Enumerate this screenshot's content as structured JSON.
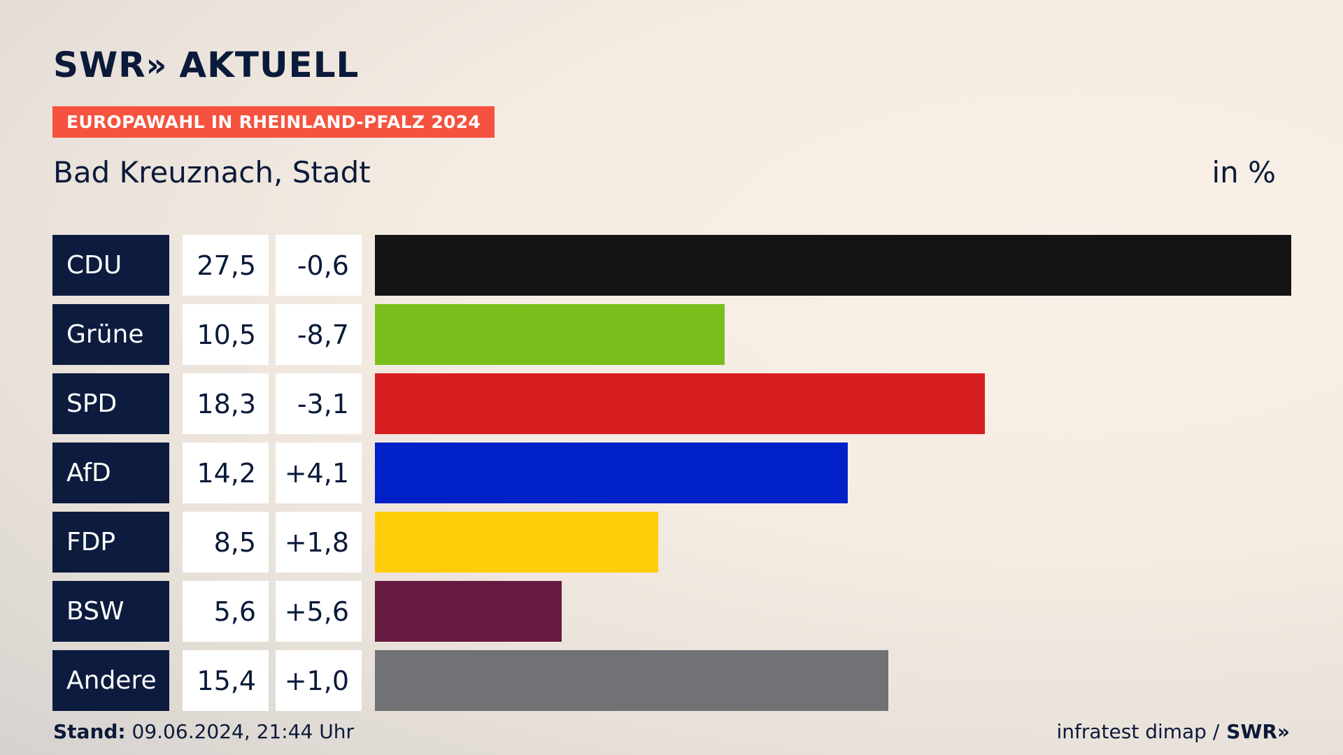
{
  "header": {
    "logo_swr": "SWR",
    "logo_chevrons": "»",
    "logo_aktuell": "AKTUELL",
    "tag": "EUROPAWAHL IN RHEINLAND-PFALZ 2024",
    "region": "Bad Kreuznach, Stadt",
    "unit": "in %"
  },
  "footer": {
    "stand_label": "Stand:",
    "stand_value": "09.06.2024, 21:44 Uhr",
    "source": "infratest dimap /",
    "source_logo": "SWR»"
  },
  "chart_data": {
    "type": "bar",
    "orientation": "horizontal",
    "categories": [
      "CDU",
      "Grüne",
      "SPD",
      "AfD",
      "FDP",
      "BSW",
      "Andere"
    ],
    "values": [
      27.5,
      10.5,
      18.3,
      14.2,
      8.5,
      5.6,
      15.4
    ],
    "value_labels": [
      "27,5",
      "10,5",
      "18,3",
      "14,2",
      "8,5",
      "5,6",
      "15,4"
    ],
    "change_labels": [
      "-0,6",
      "-8,7",
      "-3,1",
      "+4,1",
      "+1,8",
      "+5,6",
      "+1,0"
    ],
    "changes": [
      -0.6,
      -8.7,
      -3.1,
      4.1,
      1.8,
      5.6,
      1.0
    ],
    "colors": [
      "#141414",
      "#7abe1e",
      "#d81f1f",
      "#0020c8",
      "#ffcd0a",
      "#661a3f",
      "#717276"
    ],
    "unit": "in %",
    "xlim": [
      0,
      27.5
    ],
    "grid": false
  }
}
